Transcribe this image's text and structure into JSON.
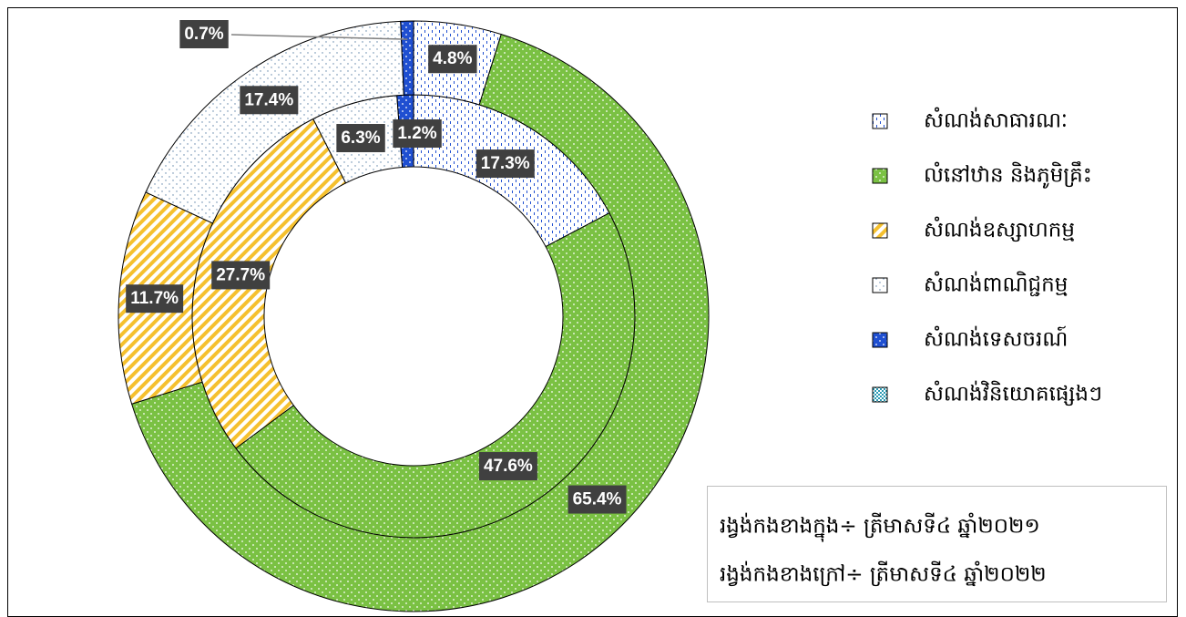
{
  "chart_data": {
    "type": "donut",
    "categories": [
      "សំណង់សាធារណៈ",
      "លំនៅឋាន និងភូមិគ្រឹះ",
      "សំណង់ឧស្សាហកម្ម",
      "សំណង់ពាណិជ្ជកម្ម",
      "សំណង់ទេសចរណ៍",
      "សំណង់វិនិយោគផ្សេងៗ"
    ],
    "colors": [
      "#1f4fd1",
      "#7ac143",
      "#f5c02e",
      "#5b7fa6",
      "#1f4fd1",
      "#2a9bb5"
    ],
    "series": [
      {
        "values": [
          17.3,
          47.6,
          27.7,
          6.3,
          1.2,
          0
        ],
        "value_labels": [
          "17.3%",
          "47.6%",
          "27.7%",
          "6.3%",
          "1.2%",
          null
        ]
      },
      {
        "values": [
          4.8,
          65.4,
          11.7,
          17.4,
          0.7,
          0
        ],
        "value_labels": [
          "4.8%",
          "65.4%",
          "11.7%",
          "17.4%",
          "0.7%",
          null
        ]
      }
    ],
    "annotations": [
      "រង្វង់កងខាងក្នុង÷ ត្រីមាសទី៤ ឆ្នាំ២០២១",
      "រង្វង់កងខាងក្រៅ÷ ត្រីមាសទី៤ ឆ្នាំ២០២២"
    ]
  }
}
